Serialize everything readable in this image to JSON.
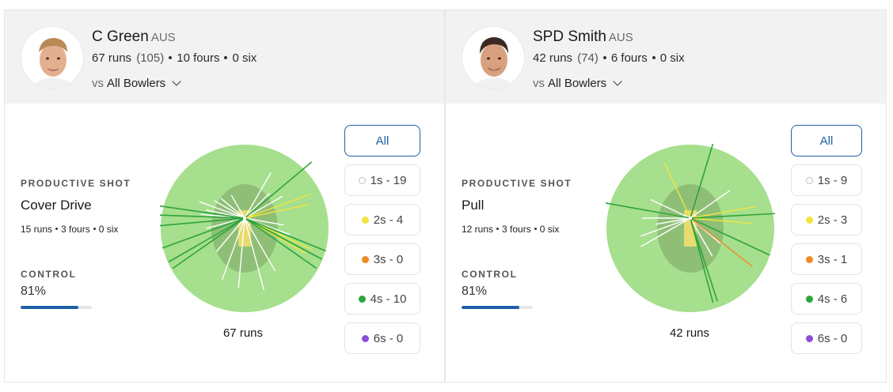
{
  "colors": {
    "accent": "#1f5fa8",
    "field": "#a6df8d",
    "infield": "#8fbf77",
    "pitch": "#e6db6e",
    "ones": "#ffffff",
    "twos": "#f2e53c",
    "threes": "#f08a24",
    "fours": "#2ea43c",
    "sixes": "#8a4fd8"
  },
  "players": [
    {
      "name": "C Green",
      "country": "AUS",
      "runs": "67 runs",
      "balls": "(105)",
      "fours": "10 fours",
      "sixes": "0 six",
      "vs_label": "vs",
      "vs_value": "All Bowlers",
      "productive_shot_title": "PRODUCTIVE SHOT",
      "productive_shot_name": "Cover Drive",
      "shot_runs": "15 runs",
      "shot_fours": "3 fours",
      "shot_sixes": "0 six",
      "control_title": "CONTROL",
      "control_value": "81%",
      "control_fraction": 0.81,
      "wagon_total": "67 runs",
      "filters": {
        "all": "All",
        "ones": "1s - 19",
        "twos": "2s - 4",
        "threes": "3s - 0",
        "fours": "4s - 10",
        "sixes": "6s - 0"
      }
    },
    {
      "name": "SPD Smith",
      "country": "AUS",
      "runs": "42 runs",
      "balls": "(74)",
      "fours": "6 fours",
      "sixes": "0 six",
      "vs_label": "vs",
      "vs_value": "All Bowlers",
      "productive_shot_title": "PRODUCTIVE SHOT",
      "productive_shot_name": "Pull",
      "shot_runs": "12 runs",
      "shot_fours": "3 fours",
      "shot_sixes": "0 six",
      "control_title": "CONTROL",
      "control_value": "81%",
      "control_fraction": 0.81,
      "wagon_total": "42 runs",
      "filters": {
        "all": "All",
        "ones": "1s - 9",
        "twos": "2s - 3",
        "threes": "3s - 1",
        "fours": "4s - 6",
        "sixes": "6s - 0"
      }
    }
  ]
}
